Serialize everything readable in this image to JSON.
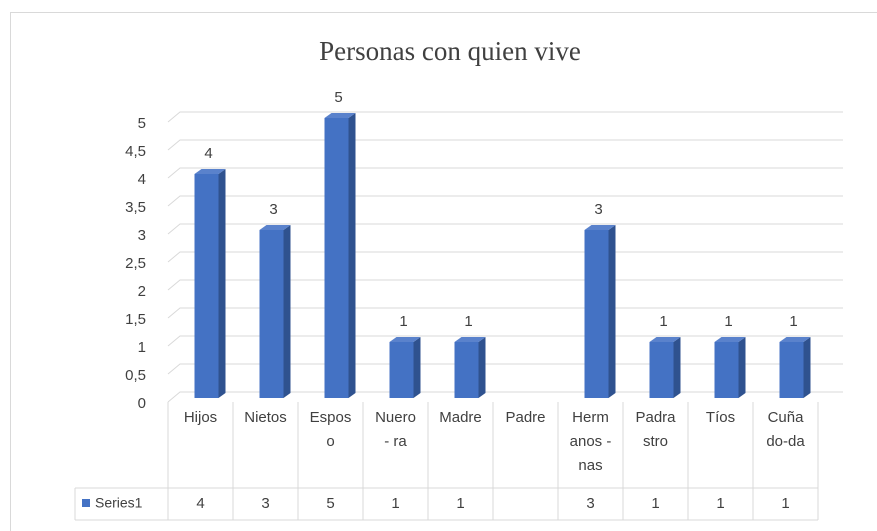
{
  "chart_data": {
    "type": "bar3d",
    "title": "Personas con quien vive",
    "categories": [
      "Hijos",
      "Nietos",
      "Esposo",
      "Nuero - ra",
      "Madre",
      "Padre",
      "Hermanos - nas",
      "Padrastro",
      "Tíos",
      "Cuñado-da"
    ],
    "series": [
      {
        "name": "Series1",
        "color": "#4472c4",
        "values": [
          4,
          3,
          5,
          1,
          1,
          null,
          3,
          1,
          1,
          1
        ]
      }
    ],
    "ylim": [
      0,
      5
    ],
    "yticks": [
      0,
      {
        "value": 0.5,
        "label": "0,5"
      },
      1,
      {
        "value": 1.5,
        "label": "1,5"
      },
      2,
      {
        "value": 2.5,
        "label": "2,5"
      },
      3,
      {
        "value": 3.5,
        "label": "3,5"
      },
      4,
      {
        "value": 4.5,
        "label": "4,5"
      },
      5
    ],
    "grid": true,
    "data_table": true
  }
}
